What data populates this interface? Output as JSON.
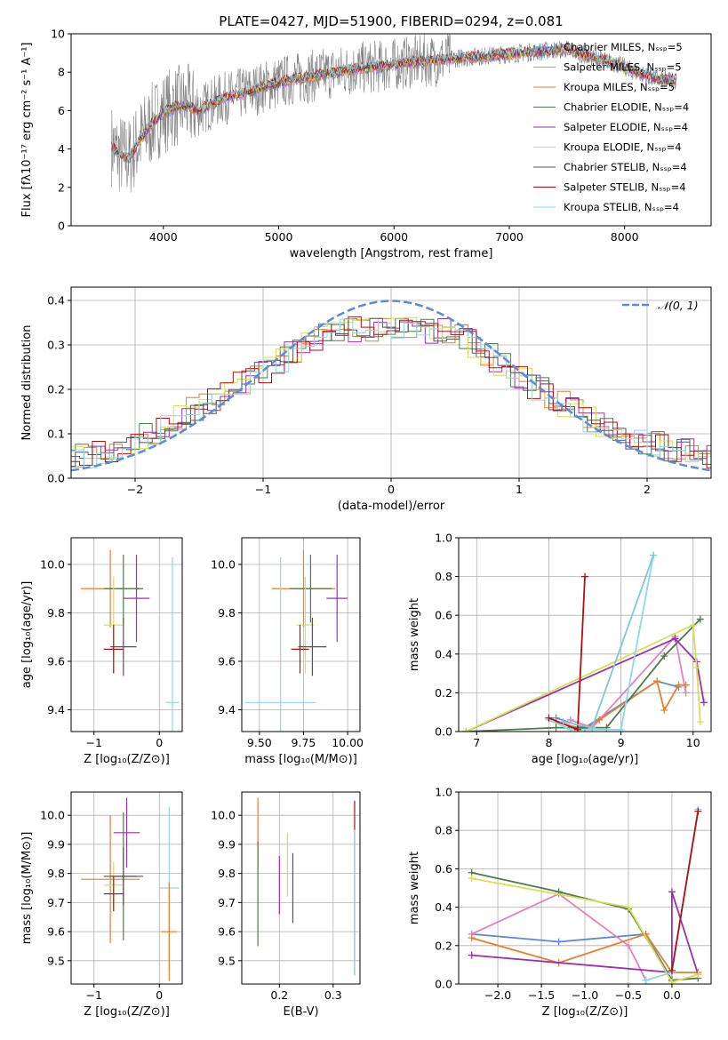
{
  "figure": {
    "title": "PLATE=0427, MJD=51900, FIBERID=0294, z=0.081",
    "colors": {
      "grid": "#b0b0b0",
      "spectrum": "#808080",
      "normal_curve": "#5b8bd9",
      "series": [
        "#e87f2a",
        "#4e7a4e",
        "#9b30b0",
        "#d6e050",
        "#555555",
        "#b01010",
        "#8ed8e8"
      ]
    }
  },
  "chart_data": [
    {
      "id": "spectrum",
      "type": "line",
      "title": "PLATE=0427, MJD=51900, FIBERID=0294, z=0.081",
      "xlabel": "wavelength [Angstrom, rest frame]",
      "ylabel": "Flux [fλ10⁻¹⁷ erg cm⁻² s⁻¹ A⁻¹]",
      "xlim": [
        3200,
        8750
      ],
      "ylim": [
        0,
        10
      ],
      "xticks": [
        "4000",
        "5000",
        "6000",
        "7000",
        "8000"
      ],
      "yticks": [
        "0",
        "2",
        "4",
        "6",
        "8",
        "10"
      ],
      "legend_position": "top-right",
      "legend": [
        "Chabrier MILES, Nₛₛₚ=5",
        "Salpeter MILES, Nₛₛₚ=5",
        "Kroupa MILES, Nₛₛₚ=5",
        "Chabrier ELODIE, Nₛₛₚ=4",
        "Salpeter ELODIE, Nₛₛₚ=4",
        "Kroupa ELODIE, Nₛₛₚ=4",
        "Chabrier STELIB, Nₛₛₚ=4",
        "Salpeter STELIB, Nₛₛₚ=4",
        "Kroupa STELIB, Nₛₛₚ=4"
      ],
      "legend_colors": [
        "#5b8bd9",
        "#e87fbd",
        "#e87f2a",
        "#4e7a4e",
        "#9b30b0",
        "#d6e050",
        "#555555",
        "#b01010",
        "#8ed8e8"
      ],
      "continuum": {
        "x": [
          3550,
          3600,
          3700,
          3800,
          3900,
          4000,
          4100,
          4200,
          4300,
          4500,
          4700,
          4900,
          5100,
          5300,
          5500,
          5700,
          5900,
          6100,
          6300,
          6500,
          6700,
          6900,
          7100,
          7300,
          7500,
          7700,
          7900,
          8100,
          8300,
          8450
        ],
        "y": [
          4.2,
          3.8,
          3.5,
          4.5,
          5.3,
          5.9,
          6.2,
          6.3,
          6.0,
          6.6,
          6.9,
          7.3,
          7.6,
          7.8,
          8.0,
          8.2,
          8.3,
          8.5,
          8.6,
          8.7,
          8.8,
          8.9,
          9.0,
          9.1,
          9.2,
          8.8,
          8.5,
          8.0,
          7.6,
          7.6
        ]
      }
    },
    {
      "id": "residuals",
      "type": "line",
      "xlabel": "(data-model)/error",
      "ylabel": "Normed distribution",
      "xlim": [
        -2.5,
        2.5
      ],
      "ylim": [
        0,
        0.43
      ],
      "xticks": [
        "−2",
        "−1",
        "0",
        "1",
        "2"
      ],
      "yticks": [
        "0.0",
        "0.1",
        "0.2",
        "0.3",
        "0.4"
      ],
      "legend_position": "top-right",
      "legend": [
        "𝒩(0, 1)"
      ],
      "series_name": "𝒩(0, 1)",
      "histogram_envelope": {
        "x": [
          -2.5,
          -2.0,
          -1.5,
          -1.0,
          -0.5,
          0.0,
          0.5,
          1.0,
          1.5,
          2.0,
          2.5
        ],
        "y": [
          0.04,
          0.08,
          0.16,
          0.24,
          0.33,
          0.34,
          0.33,
          0.23,
          0.14,
          0.08,
          0.05
        ]
      }
    },
    {
      "id": "age_vs_Z",
      "type": "scatter",
      "xlabel": "Z [log₁₀(Z/Z⊙)]",
      "ylabel": "age  [log₁₀(age/yr)]",
      "xlim": [
        -1.35,
        0.35
      ],
      "ylim": [
        9.31,
        10.11
      ],
      "xticks": [
        "−1",
        "0"
      ],
      "yticks": [
        "9.4",
        "9.6",
        "9.8",
        "10.0"
      ],
      "points": [
        {
          "x": -0.75,
          "y": 9.9,
          "xerr": 0.45,
          "yerr": 0.16
        },
        {
          "x": -0.55,
          "y": 9.9,
          "xerr": 0.3,
          "yerr": 0.14
        },
        {
          "x": -0.35,
          "y": 9.86,
          "xerr": 0.2,
          "yerr": 0.18
        },
        {
          "x": -0.7,
          "y": 9.75,
          "xerr": 0.15,
          "yerr": 0.2
        },
        {
          "x": -0.55,
          "y": 9.66,
          "xerr": 0.2,
          "yerr": 0.12
        },
        {
          "x": -0.7,
          "y": 9.65,
          "xerr": 0.15,
          "yerr": 0.1
        },
        {
          "x": 0.2,
          "y": 9.43,
          "xerr": 0.1,
          "yerr": 0.6
        }
      ]
    },
    {
      "id": "age_vs_mass",
      "type": "scatter",
      "xlabel": "mass [log₁₀(M/M⊙)]",
      "ylabel": "",
      "xlim": [
        9.4,
        10.07
      ],
      "ylim": [
        9.31,
        10.11
      ],
      "xticks": [
        "9.50",
        "9.75",
        "10.00"
      ],
      "yticks": [
        "9.4",
        "9.6",
        "9.8",
        "10.0"
      ],
      "points": [
        {
          "x": 9.75,
          "y": 9.9,
          "xerr": 0.18,
          "yerr": 0.16
        },
        {
          "x": 9.79,
          "y": 9.9,
          "xerr": 0.12,
          "yerr": 0.14
        },
        {
          "x": 9.94,
          "y": 9.86,
          "xerr": 0.06,
          "yerr": 0.18
        },
        {
          "x": 9.76,
          "y": 9.75,
          "xerr": 0.05,
          "yerr": 0.2
        },
        {
          "x": 9.8,
          "y": 9.66,
          "xerr": 0.08,
          "yerr": 0.12
        },
        {
          "x": 9.73,
          "y": 9.65,
          "xerr": 0.05,
          "yerr": 0.1
        },
        {
          "x": 9.62,
          "y": 9.43,
          "xerr": 0.2,
          "yerr": 0.6
        }
      ]
    },
    {
      "id": "weight_vs_age",
      "type": "line",
      "xlabel": "age  [log₁₀(age/yr)]",
      "ylabel": "mass weight",
      "xlim": [
        6.75,
        10.25
      ],
      "ylim": [
        0,
        1
      ],
      "xticks": [
        "7",
        "8",
        "9",
        "10"
      ],
      "yticks": [
        "0.0",
        "0.2",
        "0.4",
        "0.6",
        "0.8",
        "1.0"
      ],
      "series": [
        {
          "x": [
            8.1,
            8.5,
            9.5,
            9.8
          ],
          "y": [
            0.07,
            0.02,
            0.26,
            0.23
          ]
        },
        {
          "x": [
            8.3,
            8.6,
            9.75,
            9.9
          ],
          "y": [
            0.06,
            0.02,
            0.49,
            0.2
          ]
        },
        {
          "x": [
            8.1,
            8.5,
            8.7,
            9.5,
            9.6,
            9.8,
            9.9
          ],
          "y": [
            0.05,
            0.01,
            0.06,
            0.26,
            0.11,
            0.24,
            0.24
          ]
        },
        {
          "x": [
            6.85,
            8.1,
            8.8,
            9.6,
            10.1
          ],
          "y": [
            0.0,
            0.02,
            0.02,
            0.39,
            0.58
          ]
        },
        {
          "x": [
            6.85,
            9.75,
            10.05,
            10.15
          ],
          "y": [
            0.0,
            0.48,
            0.36,
            0.15
          ]
        },
        {
          "x": [
            6.85,
            10.0,
            10.05,
            10.1
          ],
          "y": [
            0.0,
            0.55,
            0.33,
            0.05
          ]
        },
        {
          "x": [
            8.0,
            8.3,
            9.0,
            9.45
          ],
          "y": [
            0.06,
            0.01,
            0.01,
            0.91
          ]
        },
        {
          "x": [
            8.0,
            8.4,
            8.5
          ],
          "y": [
            0.07,
            0.01,
            0.8
          ]
        },
        {
          "x": [
            8.2,
            8.6,
            9.45
          ],
          "y": [
            0.05,
            0.02,
            0.91
          ]
        }
      ]
    },
    {
      "id": "mass_vs_Z",
      "type": "scatter",
      "xlabel": "Z [log₁₀(Z/Z⊙)]",
      "ylabel": "mass [log₁₀(M/M⊙)]",
      "xlim": [
        -1.35,
        0.35
      ],
      "ylim": [
        9.42,
        10.08
      ],
      "xticks": [
        "−1",
        "0"
      ],
      "yticks": [
        "9.5",
        "9.6",
        "9.7",
        "9.8",
        "9.9",
        "10.0"
      ],
      "points": [
        {
          "x": -0.75,
          "y": 9.78,
          "xerr": 0.45,
          "yerr": 0.22
        },
        {
          "x": -0.55,
          "y": 9.79,
          "xerr": 0.3,
          "yerr": 0.22
        },
        {
          "x": -0.5,
          "y": 9.94,
          "xerr": 0.2,
          "yerr": 0.12
        },
        {
          "x": -0.7,
          "y": 9.76,
          "xerr": 0.15,
          "yerr": 0.08
        },
        {
          "x": -0.55,
          "y": 9.79,
          "xerr": 0.2,
          "yerr": 0.1
        },
        {
          "x": -0.7,
          "y": 9.73,
          "xerr": 0.15,
          "yerr": 0.06
        },
        {
          "x": 0.15,
          "y": 9.75,
          "xerr": 0.15,
          "yerr": 0.28
        },
        {
          "x": 0.15,
          "y": 9.6,
          "xerr": 0.12,
          "yerr": 0.17
        }
      ]
    },
    {
      "id": "mass_vs_ebv",
      "type": "scatter",
      "xlabel": "E(B-V)",
      "ylabel": "",
      "xlim": [
        0.13,
        0.35
      ],
      "ylim": [
        9.42,
        10.08
      ],
      "xticks": [
        "0.2",
        "0.3"
      ],
      "yticks": [
        "9.5",
        "9.6",
        "9.7",
        "9.8",
        "9.9",
        "10.0"
      ],
      "points": [
        {
          "x": 0.16,
          "y": 9.94,
          "xerr": 0.0,
          "yerr": 0.12
        },
        {
          "x": 0.16,
          "y": 9.73,
          "xerr": 0.0,
          "yerr": 0.18
        },
        {
          "x": 0.2,
          "y": 9.76,
          "xerr": 0.0,
          "yerr": 0.1
        },
        {
          "x": 0.215,
          "y": 9.83,
          "xerr": 0.0,
          "yerr": 0.11
        },
        {
          "x": 0.225,
          "y": 9.75,
          "xerr": 0.0,
          "yerr": 0.12
        },
        {
          "x": 0.34,
          "y": 9.75,
          "xerr": 0.0,
          "yerr": 0.3
        },
        {
          "x": 0.34,
          "y": 9.7,
          "xerr": 0.0,
          "yerr": 0.25
        }
      ]
    },
    {
      "id": "weight_vs_Z",
      "type": "line",
      "xlabel": "Z [log₁₀(Z/Z⊙)]",
      "ylabel": "mass weight",
      "xlim": [
        -2.45,
        0.45
      ],
      "ylim": [
        0,
        1
      ],
      "xticks": [
        "−2.0",
        "−1.5",
        "−1.0",
        "−0.5",
        "0.0"
      ],
      "yticks": [
        "0.0",
        "0.2",
        "0.4",
        "0.6",
        "0.8",
        "1.0"
      ],
      "series": [
        {
          "x": [
            -2.3,
            -1.3,
            -0.3,
            0.0
          ],
          "y": [
            0.26,
            0.22,
            0.26,
            0.02
          ]
        },
        {
          "x": [
            -2.3,
            -1.3,
            -0.5,
            -0.3,
            -0.3
          ],
          "y": [
            0.26,
            0.47,
            0.2,
            0.02,
            0.02
          ]
        },
        {
          "x": [
            -2.3,
            -1.3,
            -0.3,
            0.0,
            0.3
          ],
          "y": [
            0.24,
            0.11,
            0.26,
            0.06,
            0.06
          ]
        },
        {
          "x": [
            -2.3,
            -1.3,
            -0.5,
            0.0,
            0.3
          ],
          "y": [
            0.58,
            0.48,
            0.39,
            0.02,
            0.03
          ]
        },
        {
          "x": [
            -2.3,
            0.0,
            0.0,
            0.3
          ],
          "y": [
            0.15,
            0.06,
            0.48,
            0.05
          ]
        },
        {
          "x": [
            -2.3,
            -0.5,
            0.0,
            0.3
          ],
          "y": [
            0.55,
            0.4,
            0.01,
            0.05
          ]
        },
        {
          "x": [
            -0.3,
            0.0,
            0.3
          ],
          "y": [
            0.02,
            0.06,
            0.91
          ]
        },
        {
          "x": [
            0.0,
            0.3
          ],
          "y": [
            0.07,
            0.9
          ]
        }
      ]
    }
  ]
}
